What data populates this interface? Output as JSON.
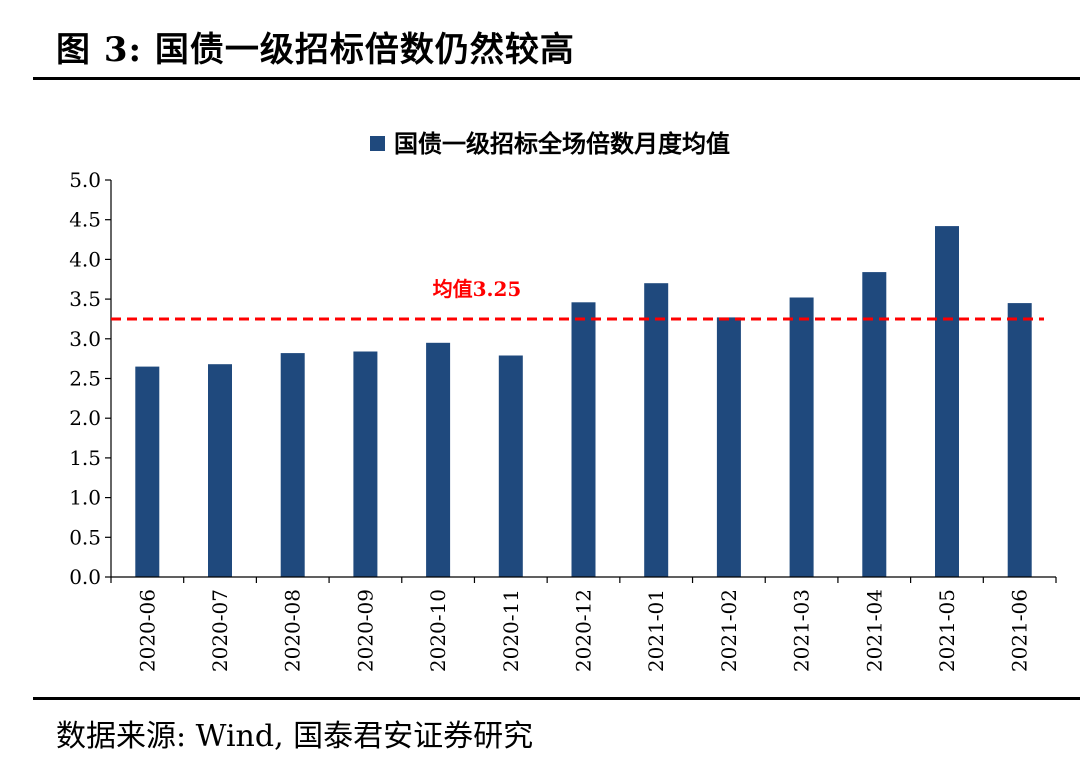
{
  "figure": {
    "title": "图 3:  国债一级招标倍数仍然较高",
    "source": "数据来源:  Wind,  国泰君安证券研究"
  },
  "colors": {
    "bar": "#1F497D",
    "average_line": "#FF0000",
    "axis": "#000000",
    "text": "#000000"
  },
  "chart_data": {
    "type": "bar",
    "categories": [
      "2020-06",
      "2020-07",
      "2020-08",
      "2020-09",
      "2020-10",
      "2020-11",
      "2020-12",
      "2021-01",
      "2021-02",
      "2021-03",
      "2021-04",
      "2021-05",
      "2021-06"
    ],
    "series": [
      {
        "name": "国债一级招标全场倍数月度均值",
        "values": [
          2.65,
          2.68,
          2.82,
          2.84,
          2.95,
          2.79,
          3.46,
          3.7,
          3.27,
          3.52,
          3.84,
          4.42,
          3.45
        ]
      }
    ],
    "ylim": [
      0,
      5.0
    ],
    "yticks": [
      "0.0",
      "0.5",
      "1.0",
      "1.5",
      "2.0",
      "2.5",
      "3.0",
      "3.5",
      "4.0",
      "4.5",
      "5.0"
    ],
    "xlabel": "",
    "ylabel": "",
    "legend_position": "top-center",
    "grid": false,
    "annotations": [
      {
        "type": "hline",
        "value": 3.25,
        "label": "均值3.25",
        "style": "dashed"
      }
    ]
  }
}
